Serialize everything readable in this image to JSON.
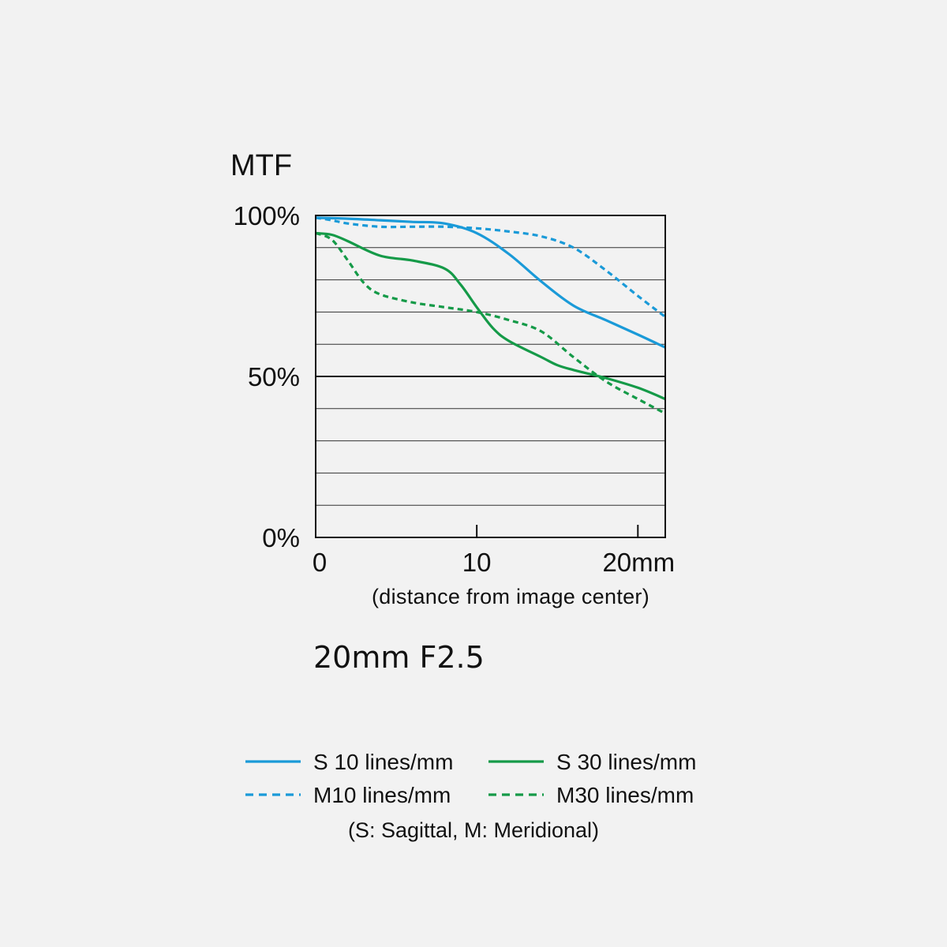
{
  "chart_data": {
    "type": "line",
    "title": "MTF",
    "subtitle": "20mm F2.5",
    "xlabel": "(distance from image center)",
    "x_unit": "mm",
    "xlim": [
      0,
      21.7
    ],
    "ylim": [
      0,
      100
    ],
    "x_ticks": [
      {
        "value": 0,
        "label": "0"
      },
      {
        "value": 10,
        "label": "10"
      },
      {
        "value": 20,
        "label": "20mm"
      }
    ],
    "y_ticks": [
      {
        "value": 100,
        "label": "100%"
      },
      {
        "value": 50,
        "label": "50%"
      },
      {
        "value": 0,
        "label": "0%"
      }
    ],
    "y_gridlines_every": 10,
    "legend_position": "bottom",
    "legend_note": "(S: Sagittal, M: Meridional)",
    "series": [
      {
        "name": "S 10 lines/mm",
        "color": "#1a9ad8",
        "dash": "solid",
        "x": [
          0,
          2,
          4,
          6,
          8,
          10,
          12,
          14,
          16,
          18,
          20,
          21.7
        ],
        "y": [
          99.3,
          99.0,
          98.5,
          98.0,
          97.5,
          94.5,
          88.0,
          79.5,
          72.0,
          67.5,
          63.0,
          59.0
        ]
      },
      {
        "name": "M10 lines/mm",
        "color": "#1a9ad8",
        "dash": "dashed",
        "x": [
          0,
          1,
          2,
          4,
          6,
          8,
          10,
          12,
          14,
          16,
          18,
          20,
          21.7
        ],
        "y": [
          99.3,
          98.5,
          97.5,
          96.5,
          96.5,
          96.5,
          96.0,
          95.0,
          93.5,
          90.0,
          83.0,
          75.0,
          68.5
        ]
      },
      {
        "name": "S 30 lines/mm",
        "color": "#159a48",
        "dash": "solid",
        "x": [
          0,
          1,
          2,
          4,
          6,
          8,
          9,
          10,
          11,
          12,
          14,
          15,
          16,
          18,
          20,
          21.7
        ],
        "y": [
          94.5,
          94.0,
          92.0,
          87.5,
          86.0,
          83.5,
          78.5,
          71.5,
          65.0,
          61.0,
          56.0,
          53.5,
          52.0,
          49.5,
          46.5,
          43.0
        ]
      },
      {
        "name": "M30 lines/mm",
        "color": "#159a48",
        "dash": "dashed",
        "x": [
          0,
          1,
          2,
          3,
          4,
          6,
          8,
          10,
          12,
          14,
          16,
          18,
          20,
          21.7
        ],
        "y": [
          94.5,
          92.5,
          86.0,
          79.0,
          75.5,
          73.0,
          71.5,
          70.0,
          67.5,
          64.0,
          56.0,
          48.5,
          43.0,
          38.5
        ]
      }
    ]
  }
}
